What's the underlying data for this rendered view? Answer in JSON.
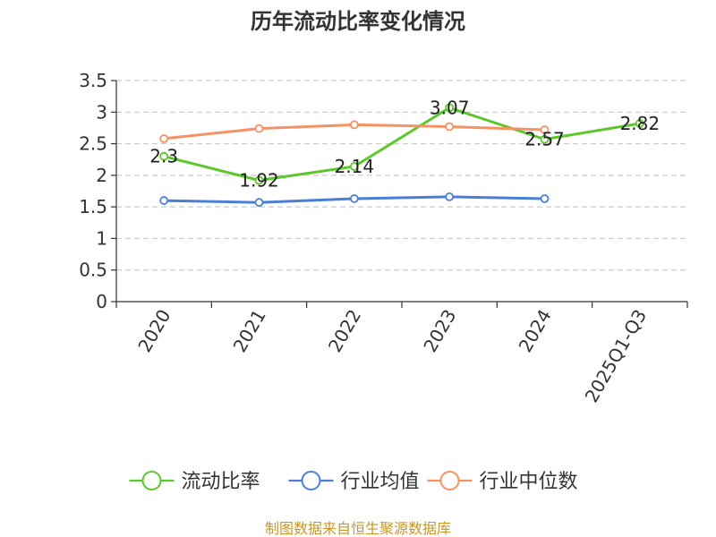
{
  "chart_data": {
    "type": "line",
    "title": "历年流动比率变化情况",
    "categories": [
      "2020",
      "2021",
      "2022",
      "2023",
      "2024",
      "2025Q1-Q3"
    ],
    "ylim": [
      0,
      3.5
    ],
    "yticks": [
      "0",
      "0.5",
      "1",
      "1.5",
      "2",
      "2.5",
      "3",
      "3.5"
    ],
    "grid": true,
    "legend_position": "bottom",
    "series": [
      {
        "name": "流动比率",
        "color": "#5cc72a",
        "values": [
          2.3,
          1.92,
          2.14,
          3.07,
          2.57,
          2.82
        ],
        "labels": [
          "2.3",
          "1.92",
          "2.14",
          "3.07",
          "2.57",
          "2.82"
        ]
      },
      {
        "name": "行业均值",
        "color": "#4a7fd8",
        "values": [
          1.6,
          1.57,
          1.63,
          1.66,
          1.63,
          null
        ]
      },
      {
        "name": "行业中位数",
        "color": "#f59263",
        "values": [
          2.58,
          2.74,
          2.8,
          2.77,
          2.72,
          null
        ]
      }
    ],
    "source": "制图数据来自恒生聚源数据库"
  }
}
